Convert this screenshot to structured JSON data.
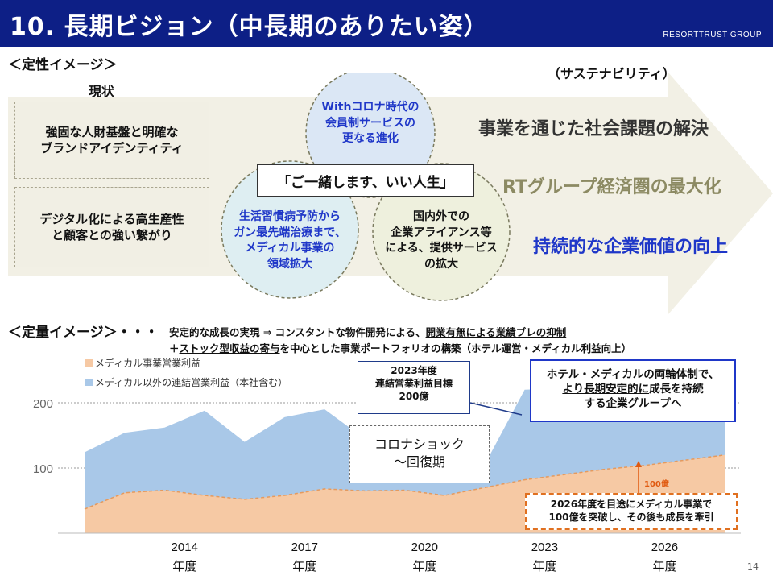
{
  "header": {
    "title": "10. 長期ビジョン（中長期のありたい姿）",
    "brand": "RESORTTRUST GROUP"
  },
  "qualitative": {
    "label": "＜定性イメージ＞",
    "current_label": "現状",
    "sustainability_label": "（サステナビリティ）",
    "current_items": [
      "強固な人財基盤と明確な\nブランドアイデンティティ",
      "デジタル化による高生産性\nと顧客との強い繋がり"
    ],
    "circles": [
      "Withコロナ時代の\n会員制サービスの\n更なる進化",
      "生活習慣病予防から\nガン最先端治療まで、\nメディカル事業の\n領域拡大",
      "国内外での\n企業アライアンス等\nによる、提供サービス\nの拡大"
    ],
    "center_phrase": "「ご一緒します、いい人生」",
    "goals": [
      "事業を通じた社会課題の解決",
      "RTグループ経済圏の最大化",
      "持続的な企業価値の向上"
    ],
    "colors": {
      "goal1": "#333333",
      "goal2": "#8c8a63",
      "goal3": "#1f37c8",
      "circle_top": "#dbe7f5",
      "circle_left": "#deeef2",
      "circle_right": "#eef0dd"
    }
  },
  "quantitative": {
    "label": "＜定量イメージ＞・・・",
    "line1_a": "安定的な成長の実現 ⇒ コンスタントな物件開発による、",
    "line1_b": "開業有無による業績ブレの抑制",
    "line2_a": "＋",
    "line2_b": "ストック型収益の寄与",
    "line2_c": "を中心とした事業ポートフォリオの構築（ホテル運営・メディカル利益向上）"
  },
  "callouts": {
    "target_2023": "2023年度\n連結営業利益目標\n200億",
    "corona": "コロナショック\n～回復期",
    "vision_1": "ホテル・メディカルの両輪体制で、",
    "vision_2": "より長期安定的に",
    "vision_3": "成長を持続",
    "vision_4": "する企業グループへ",
    "medical_100": "100億",
    "medical_goal": "2026年度を目途にメディカル事業で\n100億を突破し、その後も成長を牽引"
  },
  "chart_data": {
    "type": "area",
    "series": [
      {
        "name": "メディカル事業営業利益",
        "color": "#f6c9a4",
        "values": [
          37,
          62,
          66,
          58,
          52,
          58,
          68,
          65,
          66,
          58,
          70,
          82,
          90,
          98,
          104,
          112,
          120
        ]
      },
      {
        "name": "メディカル以外の連結営業利益（本社含む）",
        "color": "#a9c8e8",
        "values": [
          124,
          154,
          162,
          188,
          140,
          178,
          190,
          145,
          120,
          112,
          105,
          220,
          222,
          222,
          222,
          222,
          222
        ]
      }
    ],
    "x_ticks": [
      "2014\n年度",
      "2017\n年度",
      "2020\n年度",
      "2023\n年度",
      "2026\n年度"
    ],
    "y_ticks": [
      "100",
      "200"
    ],
    "ylim": [
      0,
      250
    ],
    "grid": true,
    "legend": "top-left"
  },
  "page_number": "14"
}
